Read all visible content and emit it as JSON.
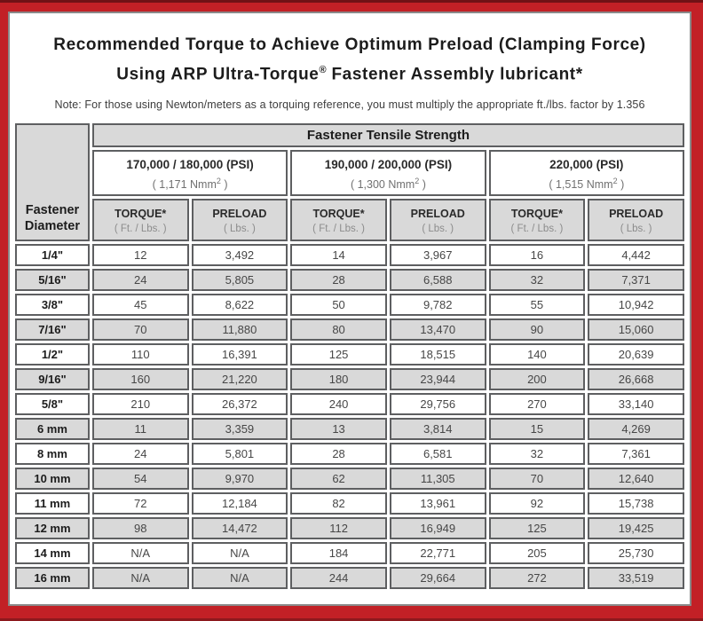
{
  "title": {
    "line1": "Recommended Torque to Achieve Optimum Preload (Clamping Force)",
    "line2_prefix": "Using ARP Ultra-Torque",
    "line2_reg": "®",
    "line2_suffix": " Fastener Assembly lubricant*"
  },
  "note": "Note: For those using Newton/meters as a torquing reference, you must multiply the appropriate ft./lbs. factor by 1.356",
  "colors": {
    "frame_red": "#c22026",
    "frame_dark_red": "#701216",
    "panel_border_gray": "#8a8a8a",
    "cell_border_gray": "#5e5f61",
    "shaded_cell_gray": "#d9d9d9"
  },
  "table": {
    "corner_header": "Fastener Diameter",
    "tensile_header": "Fastener Tensile Strength",
    "strength_groups": [
      {
        "psi": "170,000 / 180,000 (PSI)",
        "nmm_open": "( 1,171 Nmm",
        "nmm_sup": "2",
        "nmm_close": " )"
      },
      {
        "psi": "190,000 / 200,000 (PSI)",
        "nmm_open": "( 1,300 Nmm",
        "nmm_sup": "2",
        "nmm_close": " )"
      },
      {
        "psi": "220,000 (PSI)",
        "nmm_open": "( 1,515 Nmm",
        "nmm_sup": "2",
        "nmm_close": " )"
      }
    ],
    "torque_header": {
      "label": "TORQUE*",
      "sub": "( Ft. / Lbs. )"
    },
    "preload_header": {
      "label": "PRELOAD",
      "sub": "( Lbs. )"
    },
    "rows": [
      {
        "diameter": "1/4\"",
        "shaded": false,
        "values": [
          "12",
          "3,492",
          "14",
          "3,967",
          "16",
          "4,442"
        ]
      },
      {
        "diameter": "5/16\"",
        "shaded": true,
        "values": [
          "24",
          "5,805",
          "28",
          "6,588",
          "32",
          "7,371"
        ]
      },
      {
        "diameter": "3/8\"",
        "shaded": false,
        "values": [
          "45",
          "8,622",
          "50",
          "9,782",
          "55",
          "10,942"
        ]
      },
      {
        "diameter": "7/16\"",
        "shaded": true,
        "values": [
          "70",
          "11,880",
          "80",
          "13,470",
          "90",
          "15,060"
        ]
      },
      {
        "diameter": "1/2\"",
        "shaded": false,
        "values": [
          "110",
          "16,391",
          "125",
          "18,515",
          "140",
          "20,639"
        ]
      },
      {
        "diameter": "9/16\"",
        "shaded": true,
        "values": [
          "160",
          "21,220",
          "180",
          "23,944",
          "200",
          "26,668"
        ]
      },
      {
        "diameter": "5/8\"",
        "shaded": false,
        "values": [
          "210",
          "26,372",
          "240",
          "29,756",
          "270",
          "33,140"
        ]
      },
      {
        "diameter": "6 mm",
        "shaded": true,
        "values": [
          "11",
          "3,359",
          "13",
          "3,814",
          "15",
          "4,269"
        ]
      },
      {
        "diameter": "8 mm",
        "shaded": false,
        "values": [
          "24",
          "5,801",
          "28",
          "6,581",
          "32",
          "7,361"
        ]
      },
      {
        "diameter": "10 mm",
        "shaded": true,
        "values": [
          "54",
          "9,970",
          "62",
          "11,305",
          "70",
          "12,640"
        ]
      },
      {
        "diameter": "11 mm",
        "shaded": false,
        "values": [
          "72",
          "12,184",
          "82",
          "13,961",
          "92",
          "15,738"
        ]
      },
      {
        "diameter": "12 mm",
        "shaded": true,
        "values": [
          "98",
          "14,472",
          "112",
          "16,949",
          "125",
          "19,425"
        ]
      },
      {
        "diameter": "14 mm",
        "shaded": false,
        "values": [
          "N/A",
          "N/A",
          "184",
          "22,771",
          "205",
          "25,730"
        ]
      },
      {
        "diameter": "16 mm",
        "shaded": true,
        "values": [
          "N/A",
          "N/A",
          "244",
          "29,664",
          "272",
          "33,519"
        ]
      }
    ]
  }
}
